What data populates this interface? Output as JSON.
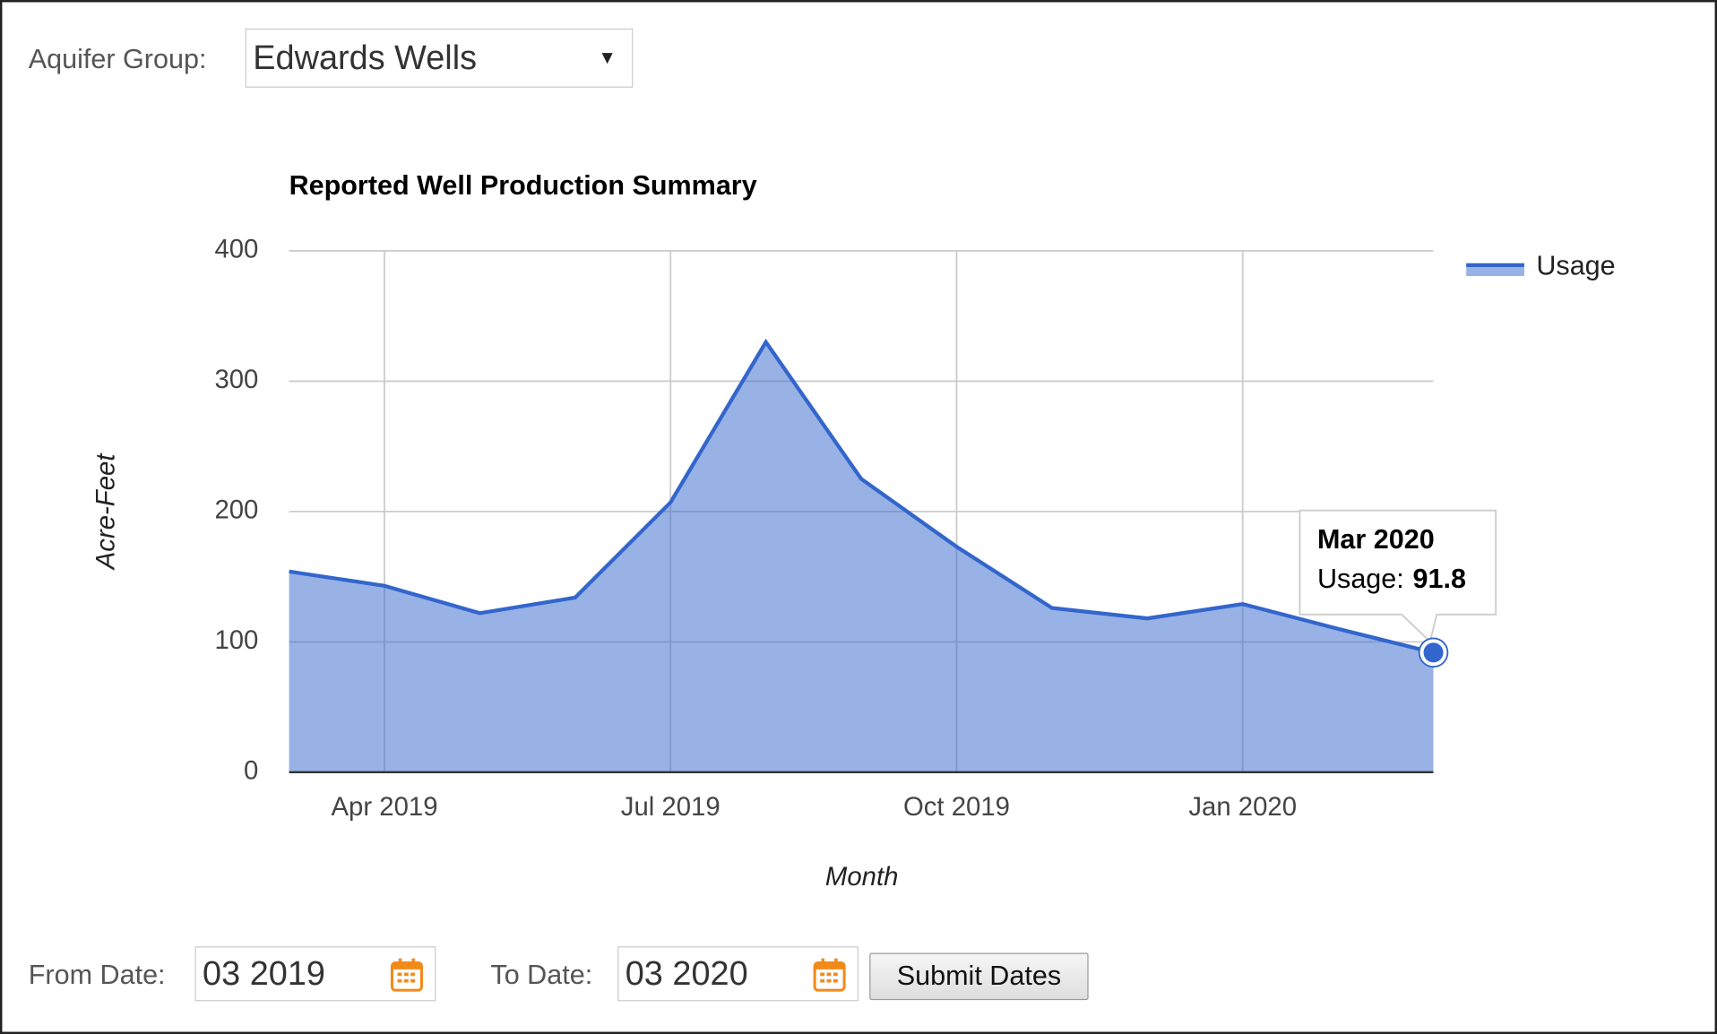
{
  "form": {
    "aquifer_label": "Aquifer Group:",
    "aquifer_value": "Edwards Wells",
    "from_label": "From Date:",
    "from_value": "03 2019",
    "to_label": "To Date:",
    "to_value": "03 2020",
    "submit": "Submit Dates"
  },
  "chart_data": {
    "type": "area",
    "title": "Reported Well Production Summary",
    "x_label": "Month",
    "y_label": "Acre-Feet",
    "x": [
      "2019-03",
      "2019-04",
      "2019-05",
      "2019-06",
      "2019-07",
      "2019-08",
      "2019-09",
      "2019-10",
      "2019-11",
      "2019-12",
      "2020-01",
      "2020-02",
      "2020-03"
    ],
    "series": [
      {
        "name": "Usage",
        "color": "#3366cc",
        "values": [
          154,
          143,
          122,
          134,
          207,
          330,
          225,
          173,
          126,
          118,
          129,
          110,
          91.8
        ]
      }
    ],
    "xlim": [
      "2019-03",
      "2020-03"
    ],
    "xticks": [
      {
        "value": "2019-04",
        "label": "Apr 2019"
      },
      {
        "value": "2019-07",
        "label": "Jul 2019"
      },
      {
        "value": "2019-10",
        "label": "Oct 2019"
      },
      {
        "value": "2020-01",
        "label": "Jan 2020"
      }
    ],
    "ylim": [
      0,
      400
    ],
    "yticks": [
      0,
      100,
      200,
      300,
      400
    ],
    "grid": true,
    "legend": "right",
    "tooltip": {
      "title": "Mar 2020",
      "label": "Usage:"
    }
  }
}
